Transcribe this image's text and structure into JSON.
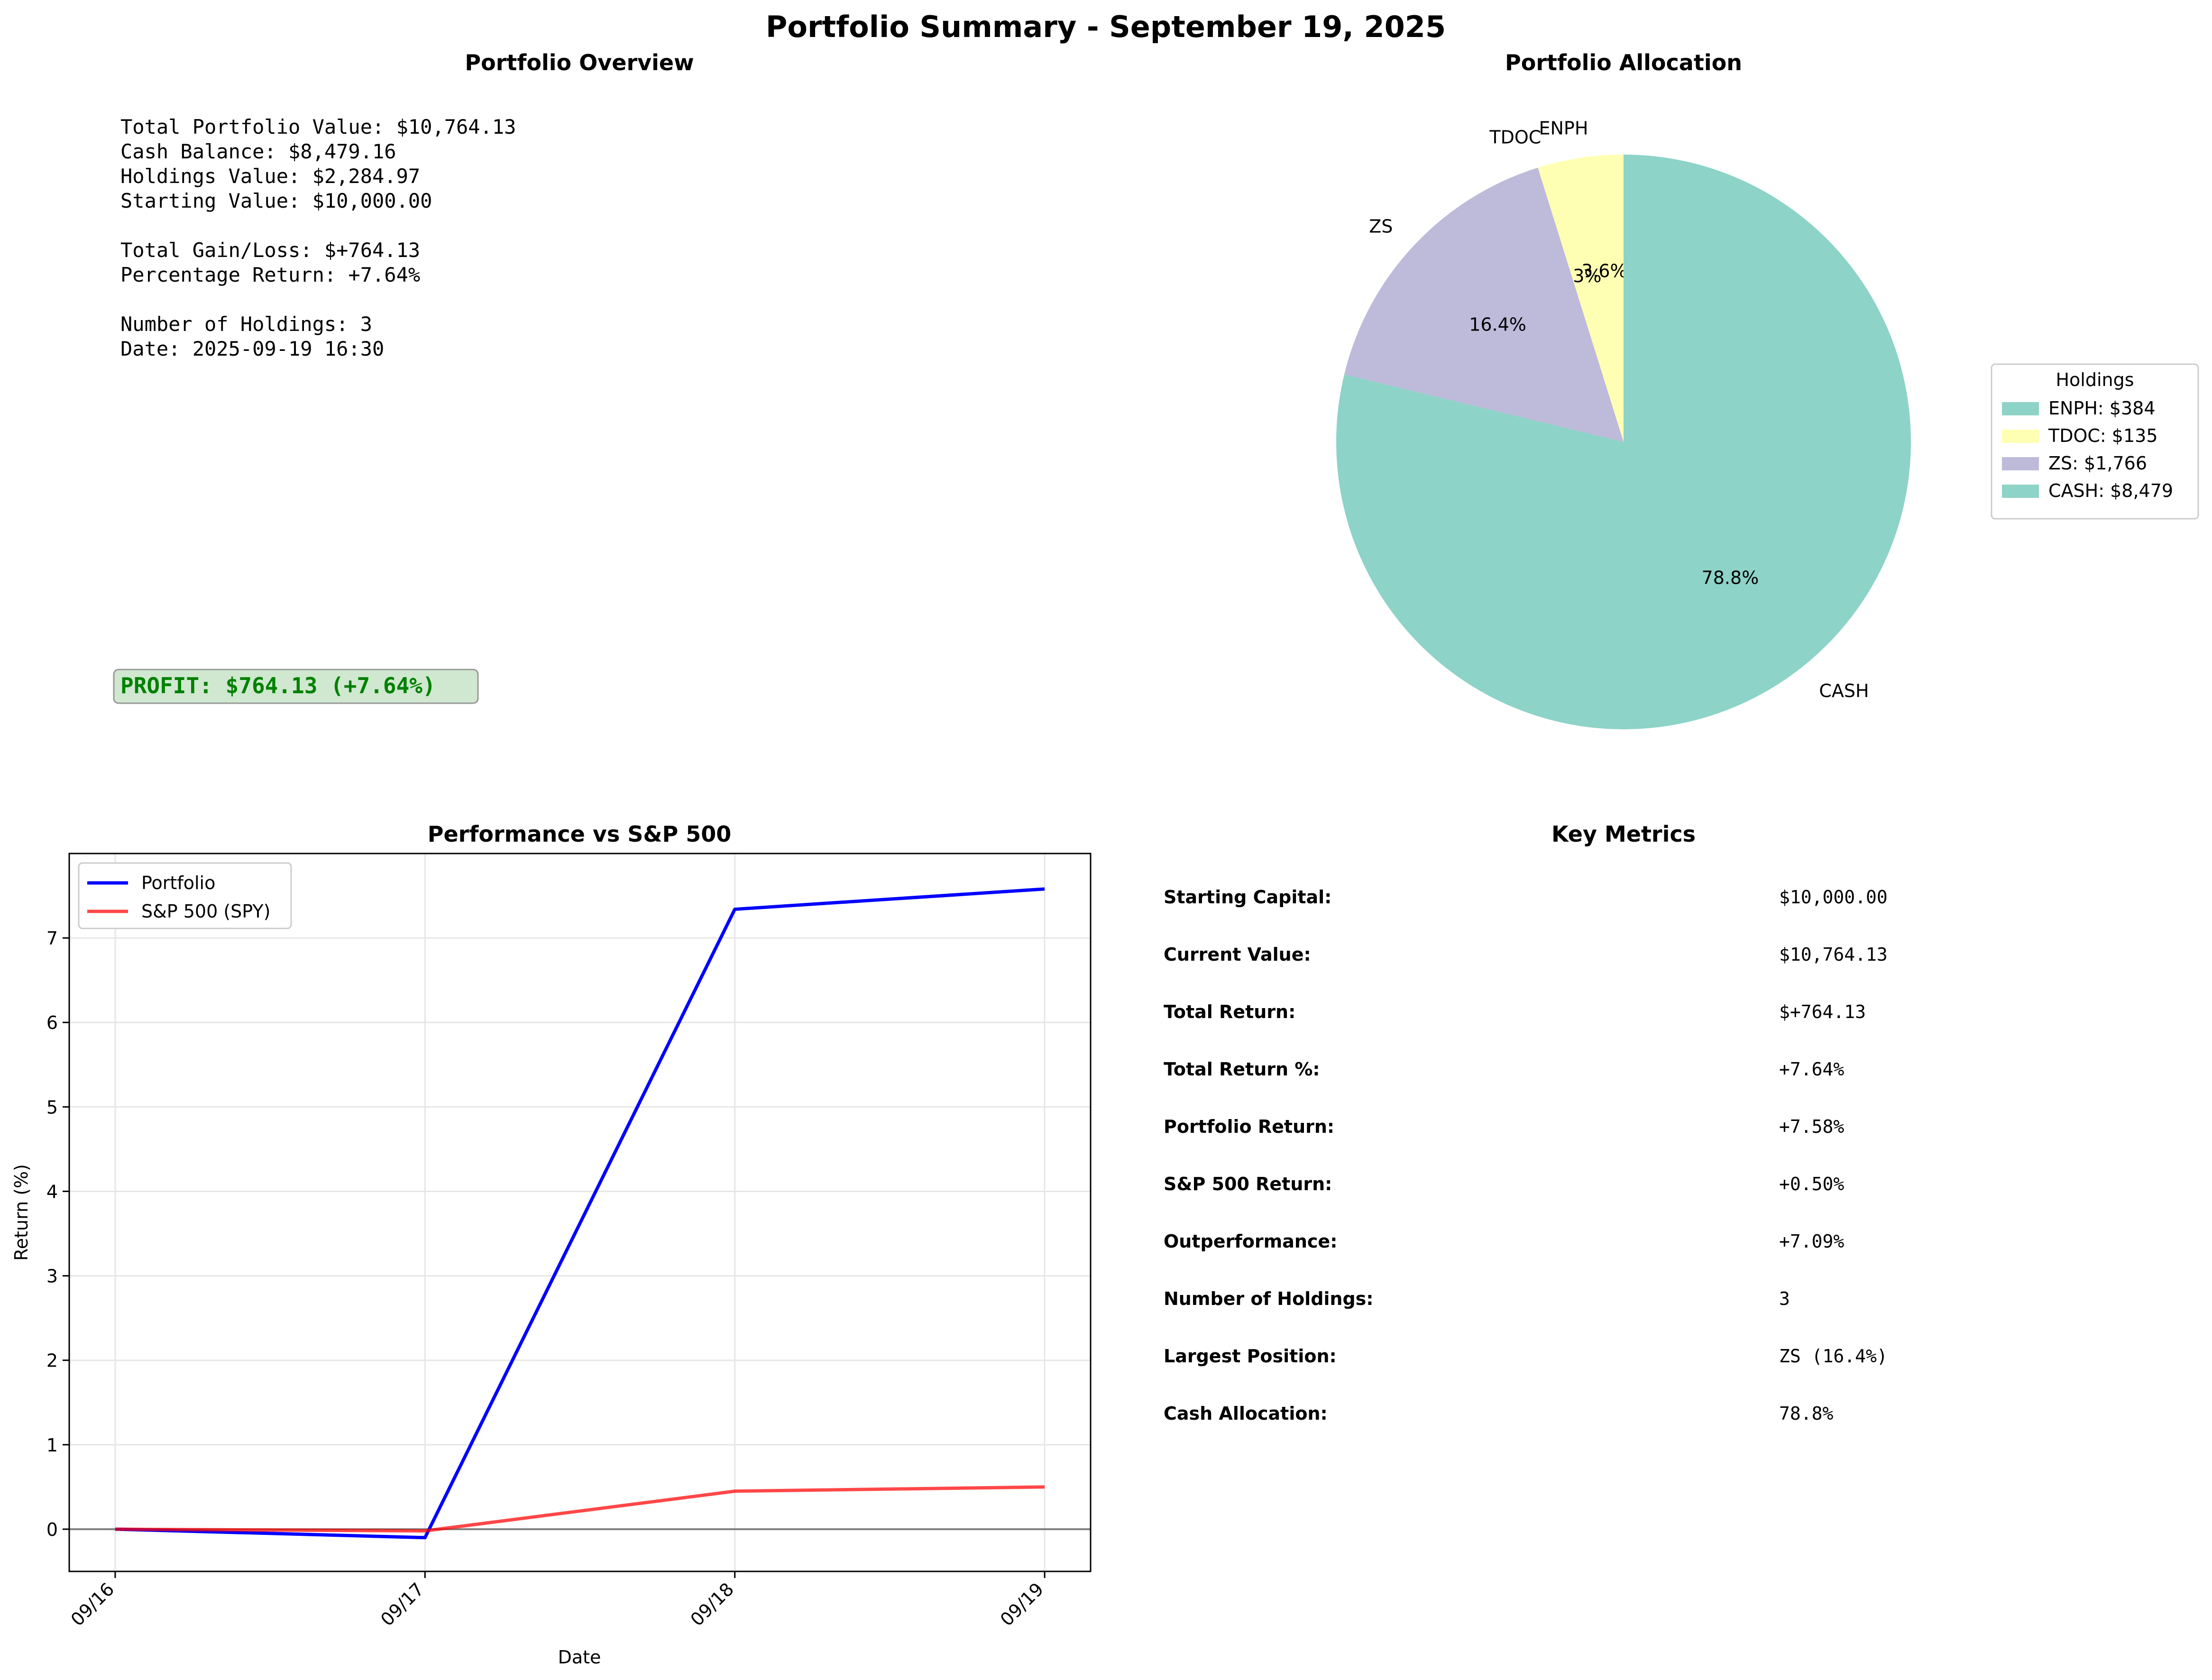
{
  "suptitle": "Portfolio Summary - September 19, 2025",
  "overview": {
    "title": "Portfolio Overview",
    "lines": [
      "Total Portfolio Value: $10,764.13",
      "Cash Balance: $8,479.16",
      "Holdings Value: $2,284.97",
      "Starting Value: $10,000.00",
      "",
      "Total Gain/Loss: $+764.13",
      "Percentage Return: +7.64%",
      "",
      "Number of Holdings: 3",
      "Date: 2025-09-19 16:30"
    ],
    "profit_badge": "PROFIT: $764.13 (+7.64%)",
    "profit_color": "#008000",
    "profit_bg": "#cfe8cf"
  },
  "chart_data": [
    {
      "type": "pie",
      "title": "Portfolio Allocation",
      "slices": [
        {
          "label": "ENPH",
          "value": 384,
          "pct_label": "3.6%",
          "color": "#ffffb3"
        },
        {
          "label": "TDOC",
          "value": 135,
          "pct_label": "1.3%",
          "color": "#ffffb3"
        },
        {
          "label": "ZS",
          "value": 1766,
          "pct_label": "16.4%",
          "color": "#bebada"
        },
        {
          "label": "CASH",
          "value": 8479,
          "pct_label": "78.8%",
          "color": "#8dd3c7"
        }
      ],
      "legend": {
        "title": "Holdings",
        "placement": "right",
        "entries": [
          {
            "label": "ENPH: $384",
            "color": "#8dd3c7"
          },
          {
            "label": "TDOC: $135",
            "color": "#ffffb3"
          },
          {
            "label": "ZS: $1,766",
            "color": "#bebada"
          },
          {
            "label": "CASH: $8,479",
            "color": "#8dd3c7"
          }
        ]
      }
    },
    {
      "type": "line",
      "title": "Performance vs S&P 500",
      "xlabel": "Date",
      "ylabel": "Return (%)",
      "categories": [
        "09/16",
        "09/17",
        "09/18",
        "09/19"
      ],
      "ylim": [
        -0.5,
        8.0
      ],
      "yticks": [
        0,
        1,
        2,
        3,
        4,
        5,
        6,
        7
      ],
      "grid": true,
      "legend_placement": "upper-left",
      "series": [
        {
          "name": "Portfolio",
          "color": "#0000ff",
          "values": [
            0.0,
            -0.1,
            7.34,
            7.58
          ]
        },
        {
          "name": "S&P 500 (SPY)",
          "color": "#ff0000",
          "values": [
            0.0,
            -0.02,
            0.45,
            0.5
          ]
        }
      ]
    }
  ],
  "metrics": {
    "title": "Key Metrics",
    "rows": [
      {
        "label": "Starting Capital:",
        "value": "$10,000.00"
      },
      {
        "label": "Current Value:",
        "value": "$10,764.13"
      },
      {
        "label": "Total Return:",
        "value": "$+764.13"
      },
      {
        "label": "Total Return %:",
        "value": "+7.64%"
      },
      {
        "label": "Portfolio Return:",
        "value": "+7.58%"
      },
      {
        "label": "S&P 500 Return:",
        "value": "+0.50%"
      },
      {
        "label": "Outperformance:",
        "value": "+7.09%"
      },
      {
        "label": "Number of Holdings:",
        "value": "3"
      },
      {
        "label": "Largest Position:",
        "value": "ZS (16.4%)"
      },
      {
        "label": "Cash Allocation:",
        "value": "78.8%"
      }
    ]
  }
}
